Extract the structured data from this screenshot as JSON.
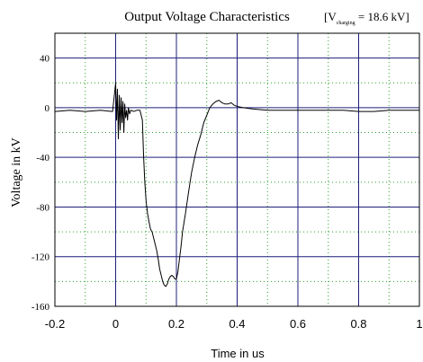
{
  "chart_data": {
    "type": "line",
    "title": "Output Voltage Characteristics",
    "annotation": {
      "prefix": "[V",
      "subscript": "charging",
      "suffix": " = 18.6 kV]"
    },
    "xlabel": "Time in us",
    "ylabel": "Voltage in kV",
    "xlim": [
      -0.2,
      1.0
    ],
    "ylim": [
      -160,
      60
    ],
    "xticks": [
      -0.2,
      0,
      0.2,
      0.4,
      0.6,
      0.8,
      1
    ],
    "xtick_labels": [
      "-0.2",
      "0",
      "0.2",
      "0.4",
      "0.6",
      "0.8",
      "1"
    ],
    "yticks": [
      -160,
      -120,
      -80,
      -40,
      0,
      40
    ],
    "ytick_labels": [
      "-160",
      "-120",
      "-80",
      "-40",
      "0",
      "40"
    ],
    "grid": true,
    "minor_grid": true,
    "colors": {
      "major_grid": "#1f1f7a",
      "minor_grid": "#2ca02c",
      "line": "#000000"
    },
    "series": [
      {
        "x": [
          -0.2,
          -0.15,
          -0.1,
          -0.05,
          -0.01,
          0.0,
          0.003,
          0.006,
          0.009,
          0.012,
          0.015,
          0.018,
          0.021,
          0.024,
          0.027,
          0.03,
          0.033,
          0.036,
          0.039,
          0.042,
          0.046,
          0.05,
          0.06,
          0.07,
          0.08,
          0.088,
          0.092,
          0.096,
          0.1,
          0.105,
          0.11,
          0.115,
          0.12,
          0.125,
          0.13,
          0.135,
          0.14,
          0.145,
          0.15,
          0.155,
          0.16,
          0.165,
          0.17,
          0.175,
          0.18,
          0.185,
          0.19,
          0.195,
          0.2,
          0.205,
          0.21,
          0.215,
          0.22,
          0.23,
          0.24,
          0.25,
          0.26,
          0.27,
          0.28,
          0.29,
          0.3,
          0.31,
          0.32,
          0.33,
          0.34,
          0.35,
          0.36,
          0.37,
          0.38,
          0.39,
          0.4,
          0.42,
          0.45,
          0.5,
          0.55,
          0.6,
          0.65,
          0.7,
          0.75,
          0.8,
          0.85,
          0.9,
          0.95,
          1.0
        ],
        "y": [
          -3,
          -2,
          -3,
          -2,
          -3,
          20,
          -10,
          15,
          -25,
          10,
          -18,
          8,
          -12,
          5,
          -20,
          3,
          -8,
          -2,
          -10,
          0,
          -5,
          -2,
          -3,
          -2,
          -2,
          -10,
          -40,
          -60,
          -75,
          -85,
          -92,
          -98,
          -100,
          -105,
          -110,
          -115,
          -122,
          -130,
          -135,
          -140,
          -143,
          -144,
          -142,
          -138,
          -136,
          -135,
          -136,
          -138,
          -138,
          -132,
          -122,
          -112,
          -100,
          -85,
          -68,
          -52,
          -40,
          -30,
          -22,
          -12,
          -6,
          0,
          3,
          5,
          6,
          4,
          3,
          3,
          4,
          2,
          1,
          0,
          -1,
          -2,
          -2,
          -2,
          -2,
          -2,
          -2,
          -3,
          -3,
          -2,
          -2,
          -2
        ]
      }
    ]
  }
}
